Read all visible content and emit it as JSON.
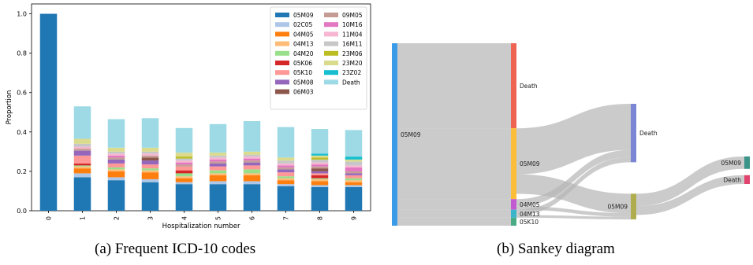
{
  "captions": {
    "a": "(a) Frequent ICD-10 codes",
    "b": "(b) Sankey diagram"
  },
  "chart_data": [
    {
      "type": "bar",
      "stacked": true,
      "xlabel": "Hospitalization number",
      "ylabel": "Proportion",
      "ylim": [
        0,
        1.05
      ],
      "yticks": [
        "0.0",
        "0.2",
        "0.4",
        "0.6",
        "0.8",
        "1.0"
      ],
      "grid": false,
      "legend_position": "top-right",
      "categories": [
        "0",
        "1",
        "2",
        "3",
        "4",
        "5",
        "6",
        "7",
        "8",
        "9"
      ],
      "series": [
        {
          "name": "05M09",
          "color": "#1f77b4",
          "values": [
            1.0,
            0.17,
            0.155,
            0.145,
            0.135,
            0.135,
            0.135,
            0.125,
            0.12,
            0.12
          ]
        },
        {
          "name": "02C05",
          "color": "#aec7e8",
          "values": [
            0,
            0.02,
            0.015,
            0.015,
            0.01,
            0.015,
            0.015,
            0.01,
            0.01,
            0.01
          ]
        },
        {
          "name": "04M05",
          "color": "#ff7f0e",
          "values": [
            0,
            0.025,
            0.03,
            0.035,
            0.02,
            0.03,
            0.03,
            0.02,
            0.02,
            0.015
          ]
        },
        {
          "name": "04M13",
          "color": "#ffbb78",
          "values": [
            0,
            0.01,
            0.01,
            0.01,
            0.01,
            0.01,
            0.01,
            0.01,
            0.01,
            0.01
          ]
        },
        {
          "name": "04M20",
          "color": "#98df8a",
          "values": [
            0,
            0.005,
            0.01,
            0.01,
            0.015,
            0.015,
            0.02,
            0.01,
            0.005,
            0.01
          ]
        },
        {
          "name": "05K06",
          "color": "#d62728",
          "values": [
            0,
            0.01,
            0,
            0,
            0.015,
            0,
            0,
            0,
            0.015,
            0
          ]
        },
        {
          "name": "05K10",
          "color": "#ff9896",
          "values": [
            0,
            0.04,
            0.02,
            0.02,
            0.02,
            0.02,
            0.02,
            0.02,
            0.01,
            0.015
          ]
        },
        {
          "name": "05M08",
          "color": "#9467bd",
          "values": [
            0,
            0.025,
            0.02,
            0.02,
            0,
            0.015,
            0.015,
            0.015,
            0.01,
            0.01
          ]
        },
        {
          "name": "06M03",
          "color": "#8c564b",
          "values": [
            0,
            0,
            0,
            0.015,
            0,
            0,
            0,
            0,
            0.015,
            0
          ]
        },
        {
          "name": "09M05",
          "color": "#c49c94",
          "values": [
            0,
            0.01,
            0.01,
            0.01,
            0.01,
            0.01,
            0.01,
            0.01,
            0.01,
            0.01
          ]
        },
        {
          "name": "10M16",
          "color": "#e377c2",
          "values": [
            0,
            0,
            0.01,
            0,
            0.01,
            0.01,
            0.01,
            0.01,
            0.01,
            0.02
          ]
        },
        {
          "name": "11M04",
          "color": "#f7b6d2",
          "values": [
            0,
            0.01,
            0.01,
            0.01,
            0.01,
            0.01,
            0.01,
            0.01,
            0.01,
            0.01
          ]
        },
        {
          "name": "16M11",
          "color": "#c7c7c7",
          "values": [
            0,
            0.015,
            0.01,
            0.01,
            0.01,
            0.01,
            0.01,
            0.015,
            0.015,
            0.02
          ]
        },
        {
          "name": "23M06",
          "color": "#bcbd22",
          "values": [
            0,
            0,
            0,
            0,
            0.01,
            0,
            0,
            0,
            0.01,
            0
          ]
        },
        {
          "name": "23M20",
          "color": "#dbdb8d",
          "values": [
            0,
            0.025,
            0.02,
            0.02,
            0.02,
            0.015,
            0.015,
            0.015,
            0.01,
            0.01
          ]
        },
        {
          "name": "23Z02",
          "color": "#17becf",
          "values": [
            0,
            0,
            0,
            0,
            0,
            0,
            0,
            0,
            0.01,
            0.015
          ]
        },
        {
          "name": "Death",
          "color": "#9edae5",
          "values": [
            0,
            0.165,
            0.145,
            0.15,
            0.125,
            0.145,
            0.155,
            0.155,
            0.125,
            0.135
          ]
        }
      ]
    },
    {
      "type": "sankey",
      "nodes": [
        {
          "id": "n0",
          "label": "05M09",
          "stage": 0,
          "color": "#3b9be6"
        },
        {
          "id": "n1",
          "label": "Death",
          "stage": 1,
          "color": "#ee6352"
        },
        {
          "id": "n2",
          "label": "05M09",
          "stage": 1,
          "color": "#fcbe3a"
        },
        {
          "id": "n3",
          "label": "04M05",
          "stage": 1,
          "color": "#c25bd1"
        },
        {
          "id": "n4",
          "label": "04M13",
          "stage": 1,
          "color": "#3ab5c9"
        },
        {
          "id": "n5",
          "label": "05K10",
          "stage": 1,
          "color": "#49ab86"
        },
        {
          "id": "n6",
          "label": "Death",
          "stage": 2,
          "color": "#7b86d4"
        },
        {
          "id": "n7",
          "label": "05M09",
          "stage": 2,
          "color": "#b0ad4e"
        },
        {
          "id": "n8",
          "label": "05M09",
          "stage": 3,
          "color": "#3a9488"
        },
        {
          "id": "n9",
          "label": "Death",
          "stage": 3,
          "color": "#e0446e"
        }
      ],
      "links": [
        {
          "source": "n0",
          "target": "n1",
          "value": 96
        },
        {
          "source": "n0",
          "target": "n2",
          "value": 80
        },
        {
          "source": "n0",
          "target": "n3",
          "value": 12
        },
        {
          "source": "n0",
          "target": "n4",
          "value": 9
        },
        {
          "source": "n0",
          "target": "n5",
          "value": 9
        },
        {
          "source": "n2",
          "target": "n6",
          "value": 52
        },
        {
          "source": "n2",
          "target": "n7",
          "value": 22
        },
        {
          "source": "n3",
          "target": "n6",
          "value": 8
        },
        {
          "source": "n3",
          "target": "n7",
          "value": 4
        },
        {
          "source": "n4",
          "target": "n6",
          "value": 6
        },
        {
          "source": "n4",
          "target": "n7",
          "value": 3
        },
        {
          "source": "n7",
          "target": "n8",
          "value": 14
        },
        {
          "source": "n7",
          "target": "n9",
          "value": 10
        }
      ]
    }
  ]
}
